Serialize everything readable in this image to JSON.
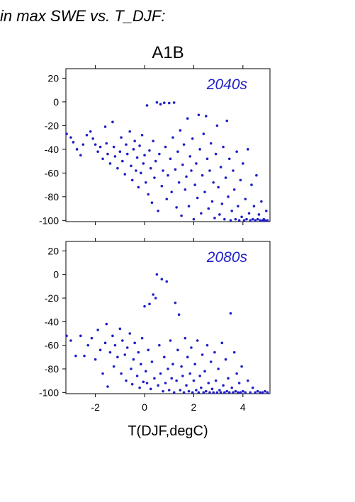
{
  "figure": {
    "header": "in max SWE vs. T_DJF:",
    "title": "A1B",
    "xlabel": "T(DJF,degC)"
  },
  "colors": {
    "points": "#1f1fc8",
    "panel_label": "#1f1fc8",
    "frame": "#000000"
  },
  "chart_data": [
    {
      "type": "scatter",
      "title": "2040s",
      "xlabel": "T(DJF,degC)",
      "ylabel": "",
      "xlim": [
        -3.2,
        5.1
      ],
      "ylim": [
        -101,
        28
      ],
      "xticks": [
        -2,
        0,
        2,
        4
      ],
      "yticks": [
        -100,
        -80,
        -60,
        -40,
        -20,
        0,
        20
      ],
      "grid": false,
      "series": [
        {
          "points": [
            [
              -3.2,
              -27
            ],
            [
              -3.0,
              -30
            ],
            [
              -2.9,
              -34
            ],
            [
              -2.75,
              -40
            ],
            [
              -2.6,
              -45
            ],
            [
              -2.5,
              -36
            ],
            [
              -2.35,
              -28
            ],
            [
              -2.2,
              -25
            ],
            [
              -2.1,
              -31
            ],
            [
              -2.0,
              -36
            ],
            [
              -1.9,
              -42
            ],
            [
              -1.8,
              -38
            ],
            [
              -1.7,
              -48
            ],
            [
              -1.6,
              -21
            ],
            [
              -1.55,
              -35
            ],
            [
              -1.5,
              -44
            ],
            [
              -1.4,
              -52
            ],
            [
              -1.3,
              -17
            ],
            [
              -1.25,
              -38
            ],
            [
              -1.2,
              -46
            ],
            [
              -1.1,
              -56
            ],
            [
              -1.0,
              -42
            ],
            [
              -0.95,
              -30
            ],
            [
              -0.9,
              -50
            ],
            [
              -0.8,
              -61
            ],
            [
              -0.75,
              -36
            ],
            [
              -0.7,
              -44
            ],
            [
              -0.6,
              -25
            ],
            [
              -0.55,
              -54
            ],
            [
              -0.5,
              -66
            ],
            [
              -0.45,
              -40
            ],
            [
              -0.4,
              -33
            ],
            [
              -0.35,
              -58
            ],
            [
              -0.3,
              -47
            ],
            [
              -0.25,
              -72
            ],
            [
              -0.2,
              -37
            ],
            [
              -0.15,
              -60
            ],
            [
              -0.1,
              -28
            ],
            [
              -0.05,
              -52
            ],
            [
              0.0,
              -45
            ],
            [
              0.05,
              -68
            ],
            [
              0.1,
              -3
            ],
            [
              0.15,
              -78
            ],
            [
              0.2,
              -41
            ],
            [
              0.25,
              -56
            ],
            [
              0.3,
              -85
            ],
            [
              0.35,
              -33
            ],
            [
              0.4,
              -64
            ],
            [
              0.45,
              -50
            ],
            [
              0.5,
              -0.5
            ],
            [
              0.55,
              -92
            ],
            [
              0.6,
              -44
            ],
            [
              0.65,
              -2
            ],
            [
              0.7,
              -71
            ],
            [
              0.75,
              -58
            ],
            [
              0.8,
              -0.8
            ],
            [
              0.85,
              -38
            ],
            [
              0.9,
              -82
            ],
            [
              0.95,
              -62
            ],
            [
              1.0,
              -1
            ],
            [
              1.05,
              -48
            ],
            [
              1.1,
              -76
            ],
            [
              1.15,
              -30
            ],
            [
              1.2,
              -0.6
            ],
            [
              1.25,
              -57
            ],
            [
              1.3,
              -89
            ],
            [
              1.35,
              -42
            ],
            [
              1.4,
              -68
            ],
            [
              1.45,
              -24
            ],
            [
              1.5,
              -96
            ],
            [
              1.55,
              -53
            ],
            [
              1.6,
              -36
            ],
            [
              1.65,
              -74
            ],
            [
              1.7,
              -63
            ],
            [
              1.75,
              -14
            ],
            [
              1.8,
              -88
            ],
            [
              1.85,
              -46
            ],
            [
              1.9,
              -58
            ],
            [
              1.95,
              -31
            ],
            [
              2.0,
              -99
            ],
            [
              2.05,
              -70
            ],
            [
              2.1,
              -52
            ],
            [
              2.15,
              -81
            ],
            [
              2.2,
              -11
            ],
            [
              2.25,
              -40
            ],
            [
              2.3,
              -94
            ],
            [
              2.35,
              -62
            ],
            [
              2.4,
              -27
            ],
            [
              2.45,
              -76
            ],
            [
              2.5,
              -12
            ],
            [
              2.55,
              -48
            ],
            [
              2.6,
              -90
            ],
            [
              2.65,
              -58
            ],
            [
              2.7,
              -35
            ],
            [
              2.75,
              -84
            ],
            [
              2.8,
              -68
            ],
            [
              2.85,
              -98
            ],
            [
              2.9,
              -44
            ],
            [
              2.95,
              -20
            ],
            [
              3.0,
              -72
            ],
            [
              3.05,
              -95
            ],
            [
              3.1,
              -55
            ],
            [
              3.15,
              -86
            ],
            [
              3.2,
              -38
            ],
            [
              3.25,
              -99
            ],
            [
              3.3,
              -64
            ],
            [
              3.35,
              -16
            ],
            [
              3.4,
              -80
            ],
            [
              3.45,
              -48
            ],
            [
              3.5,
              -100
            ],
            [
              3.55,
              -92
            ],
            [
              3.6,
              -58
            ],
            [
              3.65,
              -74
            ],
            [
              3.7,
              -99
            ],
            [
              3.75,
              -42
            ],
            [
              3.8,
              -88
            ],
            [
              3.85,
              -100
            ],
            [
              3.9,
              -66
            ],
            [
              3.95,
              -97
            ],
            [
              4.0,
              -52
            ],
            [
              4.05,
              -100
            ],
            [
              4.1,
              -82
            ],
            [
              4.15,
              -99
            ],
            [
              4.2,
              -40
            ],
            [
              4.25,
              -94
            ],
            [
              4.3,
              -100
            ],
            [
              4.35,
              -70
            ],
            [
              4.4,
              -99
            ],
            [
              4.45,
              -88
            ],
            [
              4.5,
              -100
            ],
            [
              4.55,
              -62
            ],
            [
              4.6,
              -99
            ],
            [
              4.65,
              -95
            ],
            [
              4.7,
              -100
            ],
            [
              4.75,
              -84
            ],
            [
              4.8,
              -100
            ],
            [
              4.85,
              -99
            ],
            [
              4.9,
              -100
            ],
            [
              4.95,
              -92
            ],
            [
              5.0,
              -100
            ]
          ]
        }
      ]
    },
    {
      "type": "scatter",
      "title": "2080s",
      "xlabel": "T(DJF,degC)",
      "ylabel": "",
      "xlim": [
        -3.2,
        5.1
      ],
      "ylim": [
        -101,
        28
      ],
      "xticks": [
        -2,
        0,
        2,
        4
      ],
      "yticks": [
        -100,
        -80,
        -60,
        -40,
        -20,
        0,
        20
      ],
      "grid": false,
      "series": [
        {
          "points": [
            [
              -3.2,
              -52
            ],
            [
              -3.0,
              -56
            ],
            [
              -2.8,
              -69
            ],
            [
              -2.6,
              -52
            ],
            [
              -2.45,
              -69
            ],
            [
              -2.3,
              -60
            ],
            [
              -2.15,
              -54
            ],
            [
              -2.0,
              -72
            ],
            [
              -1.9,
              -47
            ],
            [
              -1.8,
              -64
            ],
            [
              -1.7,
              -84
            ],
            [
              -1.6,
              -58
            ],
            [
              -1.55,
              -42
            ],
            [
              -1.5,
              -95
            ],
            [
              -1.4,
              -66
            ],
            [
              -1.3,
              -52
            ],
            [
              -1.25,
              -78
            ],
            [
              -1.2,
              -60
            ],
            [
              -1.1,
              -70
            ],
            [
              -1.0,
              -46
            ],
            [
              -0.95,
              -84
            ],
            [
              -0.9,
              -56
            ],
            [
              -0.8,
              -68
            ],
            [
              -0.75,
              -90
            ],
            [
              -0.7,
              -62
            ],
            [
              -0.6,
              -50
            ],
            [
              -0.55,
              -80
            ],
            [
              -0.5,
              -93
            ],
            [
              -0.45,
              -72
            ],
            [
              -0.4,
              -58
            ],
            [
              -0.3,
              -86
            ],
            [
              -0.25,
              -66
            ],
            [
              -0.2,
              -96
            ],
            [
              -0.15,
              -76
            ],
            [
              -0.1,
              -54
            ],
            [
              -0.05,
              -91
            ],
            [
              0.0,
              -27
            ],
            [
              0.05,
              -82
            ],
            [
              0.1,
              -92
            ],
            [
              0.15,
              -64
            ],
            [
              0.2,
              -25
            ],
            [
              0.25,
              -97
            ],
            [
              0.3,
              -74
            ],
            [
              0.35,
              -17
            ],
            [
              0.4,
              -88
            ],
            [
              0.45,
              -20
            ],
            [
              0.5,
              0
            ],
            [
              0.55,
              -94
            ],
            [
              0.6,
              -60
            ],
            [
              0.65,
              -84
            ],
            [
              0.7,
              -4
            ],
            [
              0.75,
              -99
            ],
            [
              0.8,
              -70
            ],
            [
              0.85,
              -92
            ],
            [
              0.9,
              -6
            ],
            [
              0.95,
              -80
            ],
            [
              1.0,
              -98
            ],
            [
              1.05,
              -56
            ],
            [
              1.1,
              -88
            ],
            [
              1.15,
              -76
            ],
            [
              1.2,
              -100
            ],
            [
              1.25,
              -24
            ],
            [
              1.3,
              -90
            ],
            [
              1.35,
              -64
            ],
            [
              1.4,
              -34
            ],
            [
              1.45,
              -98
            ],
            [
              1.5,
              -78
            ],
            [
              1.55,
              -86
            ],
            [
              1.6,
              -100
            ],
            [
              1.65,
              -54
            ],
            [
              1.7,
              -94
            ],
            [
              1.75,
              -70
            ],
            [
              1.8,
              -99
            ],
            [
              1.85,
              -84
            ],
            [
              1.9,
              -62
            ],
            [
              1.95,
              -100
            ],
            [
              2.0,
              -90
            ],
            [
              2.05,
              -76
            ],
            [
              2.1,
              -98
            ],
            [
              2.15,
              -56
            ],
            [
              2.2,
              -100
            ],
            [
              2.25,
              -86
            ],
            [
              2.3,
              -96
            ],
            [
              2.35,
              -68
            ],
            [
              2.4,
              -100
            ],
            [
              2.45,
              -82
            ],
            [
              2.5,
              -99
            ],
            [
              2.55,
              -60
            ],
            [
              2.6,
              -92
            ],
            [
              2.65,
              -100
            ],
            [
              2.7,
              -74
            ],
            [
              2.75,
              -97
            ],
            [
              2.8,
              -100
            ],
            [
              2.85,
              -66
            ],
            [
              2.9,
              -90
            ],
            [
              2.95,
              -100
            ],
            [
              3.0,
              -80
            ],
            [
              3.05,
              -98
            ],
            [
              3.1,
              -100
            ],
            [
              3.15,
              -58
            ],
            [
              3.2,
              -94
            ],
            [
              3.25,
              -100
            ],
            [
              3.3,
              -72
            ],
            [
              3.35,
              -99
            ],
            [
              3.4,
              -88
            ],
            [
              3.45,
              -100
            ],
            [
              3.5,
              -33
            ],
            [
              3.55,
              -96
            ],
            [
              3.6,
              -100
            ],
            [
              3.65,
              -66
            ],
            [
              3.7,
              -99
            ],
            [
              3.75,
              -84
            ],
            [
              3.8,
              -100
            ],
            [
              3.85,
              -92
            ],
            [
              3.9,
              -100
            ],
            [
              3.95,
              -78
            ],
            [
              4.0,
              -99
            ],
            [
              4.1,
              -100
            ],
            [
              4.2,
              -90
            ],
            [
              4.3,
              -100
            ],
            [
              4.4,
              -96
            ],
            [
              4.5,
              -100
            ],
            [
              4.6,
              -99
            ],
            [
              4.7,
              -100
            ],
            [
              4.8,
              -100
            ],
            [
              4.9,
              -99
            ],
            [
              5.0,
              -100
            ]
          ]
        }
      ]
    }
  ]
}
